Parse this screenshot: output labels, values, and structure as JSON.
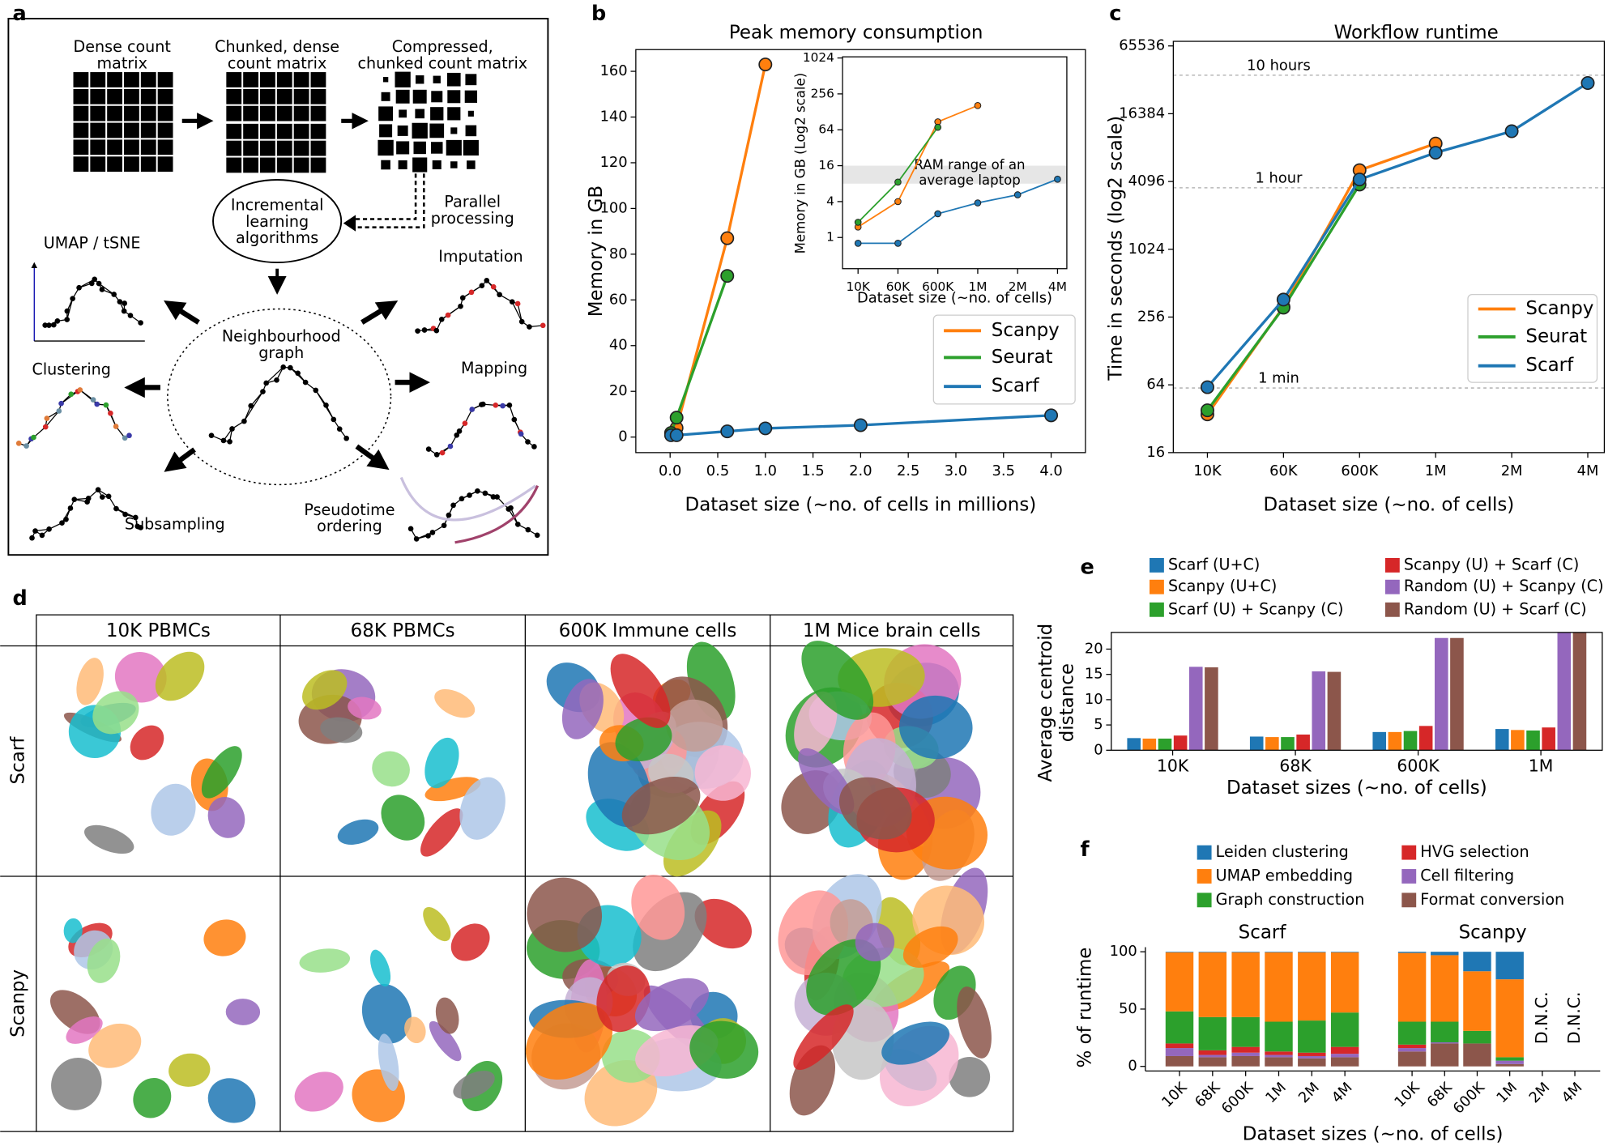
{
  "panel_labels": [
    "a",
    "b",
    "c",
    "d",
    "e",
    "f"
  ],
  "diagram": {
    "labels": [
      {
        "lines": [
          "Dense count",
          "matrix"
        ]
      },
      {
        "lines": [
          "Chunked, dense",
          "count matrix"
        ]
      },
      {
        "lines": [
          "Compressed,",
          "chunked count matrix"
        ]
      },
      {
        "lines": [
          "Incremental",
          "learning",
          "algorithms"
        ]
      },
      {
        "lines": [
          "Parallel",
          "processing"
        ]
      },
      {
        "lines": [
          "UMAP / tSNE"
        ]
      },
      {
        "lines": [
          "Imputation"
        ]
      },
      {
        "lines": [
          "Neighbourhood",
          "graph"
        ]
      },
      {
        "lines": [
          "Clustering"
        ]
      },
      {
        "lines": [
          "Mapping"
        ]
      },
      {
        "lines": [
          "Subsampling"
        ]
      },
      {
        "lines": [
          "Pseudotime",
          "ordering"
        ]
      }
    ]
  },
  "umap": {
    "columns": [
      "10K PBMCs",
      "68K PBMCs",
      "600K Immune cells",
      "1M Mice brain cells"
    ],
    "rows": [
      "Scarf",
      "Scanpy"
    ]
  },
  "chart_data": [
    {
      "type": "line",
      "title": "Peak memory consumption",
      "xlabel": "Dataset size (~no. of cells in millions)",
      "ylabel": "Memory in GB",
      "x": [
        0.01,
        0.068,
        0.6,
        1.0,
        2.0,
        4.0
      ],
      "series": [
        {
          "name": "Scanpy",
          "color": "#ff7f0e",
          "values": [
            1.5,
            4,
            87,
            163,
            null,
            null
          ]
        },
        {
          "name": "Seurat",
          "color": "#2ca02c",
          "values": [
            1.8,
            8.5,
            70.5,
            null,
            null,
            null
          ]
        },
        {
          "name": "Scarf",
          "color": "#1f77b4",
          "values": [
            0.8,
            0.8,
            2.5,
            3.8,
            5.2,
            9.5
          ]
        }
      ],
      "xlim": [
        -0.36,
        4.36
      ],
      "ylim": [
        -6.8,
        169.5
      ],
      "xticks": [
        {
          "value": 0,
          "label": "0.0"
        },
        0.5,
        {
          "value": 1,
          "label": "1.0"
        },
        1.5,
        {
          "value": 2,
          "label": "2.0"
        },
        2.5,
        {
          "value": 3,
          "label": "3.0"
        },
        3.5,
        {
          "value": 4,
          "label": "4.0"
        }
      ],
      "yticks": [
        0,
        20,
        40,
        60,
        80,
        100,
        120,
        140,
        160
      ],
      "legend": "lower right"
    },
    {
      "type": "line",
      "xlabel": "Dataset size (~no. of cells)",
      "ylabel": "Memory in GB (Log2 scale)",
      "categories": [
        "10K",
        "60K",
        "600K",
        "1M",
        "2M",
        "4M"
      ],
      "series": [
        {
          "color": "#ff7f0e",
          "values": [
            1.5,
            4,
            87,
            163,
            null,
            null
          ]
        },
        {
          "color": "#2ca02c",
          "values": [
            1.8,
            8.5,
            70.5,
            null,
            null,
            null
          ]
        },
        {
          "color": "#1f77b4",
          "values": [
            0.8,
            0.8,
            2.5,
            3.8,
            5.2,
            9.5
          ]
        }
      ],
      "yscale": "log2",
      "ylim": [
        0.3,
        1070
      ],
      "yticks": [
        1,
        4,
        16,
        64,
        256,
        1024
      ],
      "band": {
        "range": [
          8,
          16
        ],
        "label": [
          "RAM range of an",
          "average laptop"
        ]
      }
    },
    {
      "type": "line",
      "title": "Workflow runtime",
      "xlabel": "Dataset size (~no. of cells)",
      "ylabel": "Time in seconds (log2 scale)",
      "categories": [
        "10K",
        "60K",
        "600K",
        "1M",
        "2M",
        "4M"
      ],
      "series": [
        {
          "name": "Scanpy",
          "color": "#ff7f0e",
          "values": [
            35,
            316,
            5160,
            8900,
            null,
            null
          ]
        },
        {
          "name": "Seurat",
          "color": "#2ca02c",
          "values": [
            38,
            310,
            3850,
            null,
            null,
            null
          ]
        },
        {
          "name": "Scarf",
          "color": "#1f77b4",
          "values": [
            61,
            366,
            4270,
            7380,
            11450,
            30700
          ]
        }
      ],
      "yscale": "log2",
      "ylim": [
        16,
        72000
      ],
      "yticks": [
        16,
        64,
        256,
        1024,
        4096,
        16384,
        65536
      ],
      "reference_lines": [
        {
          "value": 36000,
          "label": "10 hours"
        },
        {
          "value": 3600,
          "label": "1 hour"
        },
        {
          "value": 60,
          "label": "1 min"
        }
      ],
      "legend": "center right"
    },
    {
      "type": "bar",
      "xlabel": "Dataset sizes (~no. of cells)",
      "ylabel": [
        "Average centroid",
        "distance"
      ],
      "categories": [
        "10K",
        "68K",
        "600K",
        "1M"
      ],
      "series": [
        {
          "name": "Scarf (U+C)",
          "color": "#1f77b4",
          "values": [
            2.4,
            2.7,
            3.6,
            4.2
          ]
        },
        {
          "name": "Scanpy (U+C)",
          "color": "#ff7f0e",
          "values": [
            2.3,
            2.6,
            3.6,
            4.0
          ]
        },
        {
          "name": "Scarf (U) + Scanpy (C)",
          "color": "#2ca02c",
          "values": [
            2.3,
            2.6,
            3.8,
            3.9
          ]
        },
        {
          "name": "Scanpy (U) + Scarf (C)",
          "color": "#d62728",
          "values": [
            2.9,
            3.1,
            4.8,
            4.5
          ]
        },
        {
          "name": "Random (U) + Scanpy (C)",
          "color": "#9467bd",
          "values": [
            16.5,
            15.6,
            22.2,
            23.2
          ]
        },
        {
          "name": "Random (U) + Scarf (C)",
          "color": "#8c564b",
          "values": [
            16.4,
            15.5,
            22.2,
            23.2
          ]
        }
      ],
      "ylim": [
        0,
        23.3
      ],
      "yticks": [
        0,
        5,
        10,
        15,
        20
      ],
      "legend": "top"
    },
    {
      "type": "stacked_bar",
      "xlabel": "Dataset sizes (~no. of cells)",
      "ylabel": "% of runtime",
      "series": [
        {
          "name": "Leiden clustering",
          "color": "#1f77b4"
        },
        {
          "name": "UMAP embedding",
          "color": "#ff7f0e"
        },
        {
          "name": "Graph construction",
          "color": "#2ca02c"
        },
        {
          "name": "HVG selection",
          "color": "#d62728"
        },
        {
          "name": "Cell filtering",
          "color": "#9467bd"
        },
        {
          "name": "Format conversion",
          "color": "#8c564b"
        }
      ],
      "groups": [
        {
          "name": "Scarf",
          "categories": [
            "10K",
            "68K",
            "600K",
            "1M",
            "2M",
            "4M"
          ],
          "values": [
            [
              0.5,
              0.5,
              0.5,
              0.5,
              0.5,
              0.5
            ],
            [
              51.5,
              56.5,
              56.5,
              60.5,
              59.5,
              52.5
            ],
            [
              28,
              29,
              26,
              26,
              28,
              30
            ],
            [
              4,
              4,
              5,
              3,
              3,
              6
            ],
            [
              7,
              2,
              3,
              2,
              2,
              3
            ],
            [
              9,
              8,
              9,
              8,
              7,
              8
            ]
          ]
        },
        {
          "name": "Scanpy",
          "categories": [
            "10K",
            "68K",
            "600K",
            "1M",
            "2M",
            "4M"
          ],
          "values": [
            [
              1,
              3,
              17,
              24,
              null,
              null
            ],
            [
              60,
              58,
              52,
              68,
              null,
              null
            ],
            [
              20,
              18,
              11,
              3,
              null,
              null
            ],
            [
              3,
              0,
              0,
              0,
              null,
              null
            ],
            [
              3,
              1,
              0,
              3,
              null,
              null
            ],
            [
              13,
              20,
              20,
              2,
              null,
              null
            ]
          ],
          "category_labels": [
            null,
            null,
            null,
            null,
            "D.N.C.",
            "D.N.C."
          ]
        }
      ],
      "ylim": [
        -4,
        104
      ],
      "yticks": [
        0,
        50,
        100
      ],
      "legend": "top"
    }
  ]
}
